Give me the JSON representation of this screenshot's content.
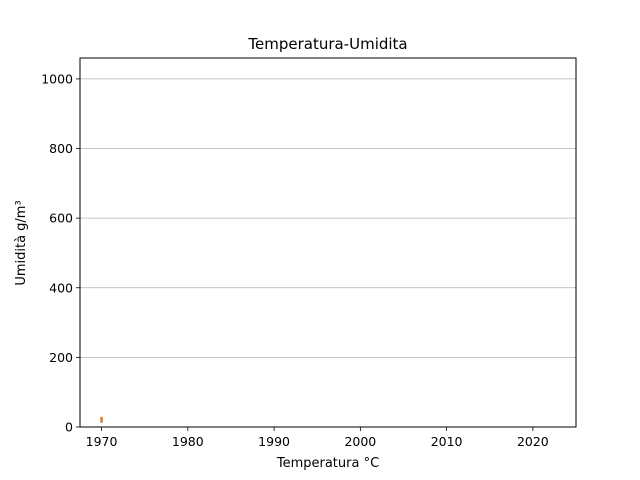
{
  "chart_data": {
    "type": "scatter",
    "title": "Temperatura-Umidita",
    "xlabel": "Temperatura °C",
    "ylabel": "Umidità g/m³",
    "xlim": [
      1967.5,
      2025
    ],
    "ylim": [
      0,
      1060
    ],
    "xticks": [
      1970,
      1980,
      1990,
      2000,
      2010,
      2020
    ],
    "yticks": [
      0,
      200,
      400,
      600,
      800,
      1000
    ],
    "grid": "y-only",
    "legend": "none",
    "series": [
      {
        "color": "#1f77b4",
        "points": [
          {
            "x": 1970,
            "y": 20
          }
        ]
      },
      {
        "color": "#ff7f0e",
        "points": [
          {
            "x": 1970,
            "y": 22
          }
        ]
      }
    ]
  }
}
